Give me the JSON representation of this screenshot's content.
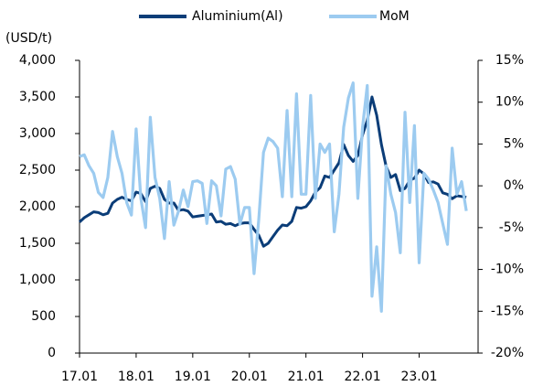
{
  "chart_data": {
    "type": "line",
    "y_label": "(USD/t)",
    "categories": [
      "17.01",
      null,
      null,
      null,
      null,
      null,
      null,
      null,
      null,
      null,
      null,
      null,
      "18.01",
      null,
      null,
      null,
      null,
      null,
      null,
      null,
      null,
      null,
      null,
      null,
      "19.01",
      null,
      null,
      null,
      null,
      null,
      null,
      null,
      null,
      null,
      null,
      null,
      "20.01",
      null,
      null,
      null,
      null,
      null,
      null,
      null,
      null,
      null,
      null,
      null,
      "21.01",
      null,
      null,
      null,
      null,
      null,
      null,
      null,
      null,
      null,
      null,
      null,
      "22.01",
      null,
      null,
      null,
      null,
      null,
      null,
      null,
      null,
      null,
      null,
      null,
      "23.01",
      null,
      null,
      null,
      null,
      null,
      null,
      null,
      null,
      null,
      null
    ],
    "series": [
      {
        "name": "Aluminium(Al)",
        "color": "#0b3d78",
        "axis": "y",
        "values": [
          1790,
          1850,
          1890,
          1930,
          1920,
          1890,
          1910,
          2050,
          2100,
          2130,
          2100,
          2080,
          2200,
          2180,
          2070,
          2250,
          2280,
          2250,
          2100,
          2050,
          2050,
          1950,
          1960,
          1940,
          1860,
          1870,
          1880,
          1890,
          1900,
          1790,
          1800,
          1760,
          1770,
          1740,
          1770,
          1780,
          1780,
          1690,
          1610,
          1460,
          1500,
          1590,
          1680,
          1750,
          1740,
          1800,
          1990,
          1980,
          2000,
          2080,
          2200,
          2260,
          2420,
          2400,
          2500,
          2600,
          2850,
          2700,
          2620,
          2700,
          2980,
          3180,
          3500,
          3250,
          2850,
          2550,
          2400,
          2440,
          2220,
          2250,
          2360,
          2390,
          2500,
          2450,
          2330,
          2340,
          2310,
          2190,
          2170,
          2110,
          2150,
          2140,
          2130
        ]
      },
      {
        "name": "MoM",
        "color": "#9ccbf0",
        "axis": "y2",
        "values": [
          3.5,
          3.7,
          2.4,
          1.5,
          -0.8,
          -1.4,
          1.0,
          6.5,
          3.5,
          1.5,
          -2.0,
          -3.5,
          6.8,
          -1.5,
          -5.0,
          8.2,
          1.0,
          -1.5,
          -6.3,
          0.5,
          -4.7,
          -3.0,
          -0.5,
          -2.5,
          0.5,
          0.6,
          0.3,
          -4.5,
          0.6,
          0,
          -3.6,
          2.0,
          2.3,
          0.8,
          -4.6,
          -2.6,
          -2.6,
          -10.5,
          -4.0,
          4.0,
          5.7,
          5.3,
          4.5,
          -1.3,
          9.0,
          -1.3,
          11.0,
          -1.0,
          -1.0,
          10.8,
          -1.5,
          5.0,
          4.0,
          5.0,
          -5.5,
          -1.0,
          7.0,
          10.5,
          12.3,
          -1.5,
          7.0,
          12.0,
          -13.2,
          -7.3,
          -15.0,
          2.4,
          -1.0,
          -3.2,
          -8.0,
          8.8,
          -2.0,
          7.2,
          -9.2,
          1.5,
          0.8,
          -0.5,
          -2.0,
          -4.5,
          -7.0,
          4.5,
          -1.0,
          0.5,
          -3.0
        ]
      }
    ],
    "ylim": [
      0,
      4000
    ],
    "yticks": [
      0,
      500,
      {
        "value": 1000,
        "label": "1,000"
      },
      {
        "value": 1500,
        "label": "1,500"
      },
      {
        "value": 2000,
        "label": "2,000"
      },
      {
        "value": 2500,
        "label": "2,500"
      },
      {
        "value": 3000,
        "label": "3,000"
      },
      {
        "value": 3500,
        "label": "3,500"
      },
      {
        "value": 4000,
        "label": "4,000"
      }
    ],
    "y2lim": [
      -20,
      15
    ],
    "y2ticks": [
      {
        "value": -20,
        "label": "-20%"
      },
      {
        "value": -15,
        "label": "-15%"
      },
      {
        "value": -10,
        "label": "-10%"
      },
      {
        "value": -5,
        "label": "-5%"
      },
      {
        "value": 0,
        "label": "0%"
      },
      {
        "value": 5,
        "label": "5%"
      },
      {
        "value": 10,
        "label": "10%"
      },
      {
        "value": 15,
        "label": "15%"
      }
    ],
    "legend": "top",
    "grid": false
  }
}
